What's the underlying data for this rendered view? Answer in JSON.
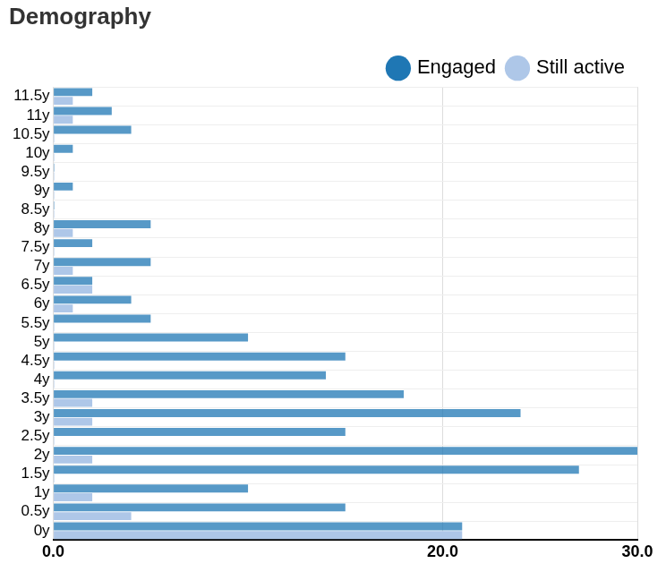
{
  "chart_data": {
    "type": "bar",
    "title": "Demography",
    "orientation": "horizontal",
    "categories": [
      "0y",
      "0.5y",
      "1y",
      "1.5y",
      "2y",
      "2.5y",
      "3y",
      "3.5y",
      "4y",
      "4.5y",
      "5y",
      "5.5y",
      "6y",
      "6.5y",
      "7y",
      "7.5y",
      "8y",
      "8.5y",
      "9y",
      "9.5y",
      "10y",
      "10.5y",
      "11y",
      "11.5y"
    ],
    "series": [
      {
        "name": "Engaged",
        "color": "#1f77b4",
        "values": [
          21,
          15,
          10,
          27,
          30,
          15,
          24,
          18,
          14,
          15,
          10,
          5,
          4,
          2,
          5,
          2,
          5,
          0,
          1,
          0,
          1,
          4,
          3,
          2
        ]
      },
      {
        "name": "Still active",
        "color": "#aec7e8",
        "values": [
          21,
          4,
          2,
          0,
          2,
          0,
          2,
          2,
          0,
          0,
          0,
          0,
          1,
          2,
          1,
          0,
          1,
          0,
          0,
          0,
          0,
          0,
          1,
          1
        ]
      }
    ],
    "xlim": [
      0,
      30
    ],
    "xticks": [
      {
        "value": 0,
        "label": "0.0"
      },
      {
        "value": 20,
        "label": "20.0"
      },
      {
        "value": 30,
        "label": "30.0"
      }
    ],
    "grid": true,
    "legend": "top-right"
  }
}
